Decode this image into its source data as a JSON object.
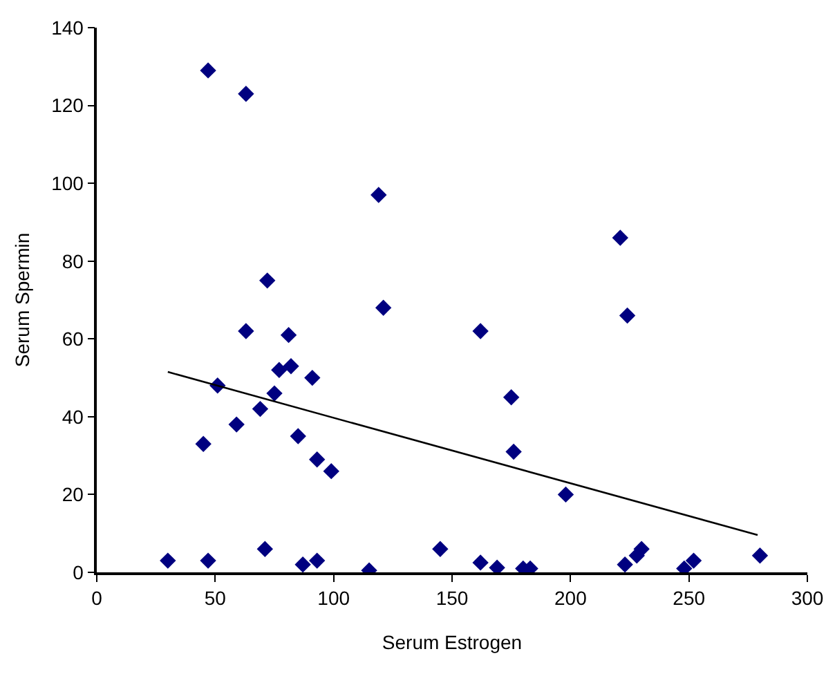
{
  "chart_data": {
    "type": "scatter",
    "xlabel": "Serum Estrogen",
    "ylabel": "Serum Spermin",
    "grid": false,
    "xlim": [
      0,
      300
    ],
    "xticks": [
      0,
      50,
      100,
      150,
      200,
      250,
      300
    ],
    "ylim": [
      0,
      140
    ],
    "yticks": [
      0,
      20,
      40,
      60,
      80,
      100,
      120,
      140
    ],
    "series": [
      {
        "marker": "diamond",
        "color": "#000080",
        "x": [
          47,
          63,
          119,
          221,
          224,
          162,
          175,
          176,
          198,
          72,
          121,
          63,
          81,
          77,
          82,
          91,
          51,
          75,
          69,
          59,
          45,
          85,
          93,
          99,
          30,
          47,
          71,
          87,
          93,
          115,
          145,
          162,
          169,
          180,
          183,
          223,
          228,
          230,
          248,
          252,
          280
        ],
        "values": [
          129,
          123,
          97,
          86,
          66,
          62,
          45,
          31,
          20,
          75,
          68,
          62,
          61,
          52,
          53,
          50,
          48,
          46,
          42,
          38,
          33,
          35,
          29,
          26,
          3,
          3,
          6,
          2,
          3,
          0.5,
          6,
          2.5,
          1.2,
          1,
          1,
          2,
          4.3,
          6,
          1,
          3,
          4.3
        ]
      },
      {
        "type": "line",
        "marker": "none",
        "color": "#000000",
        "x": [
          30,
          279
        ],
        "values": [
          51.5,
          9.6
        ]
      }
    ]
  }
}
